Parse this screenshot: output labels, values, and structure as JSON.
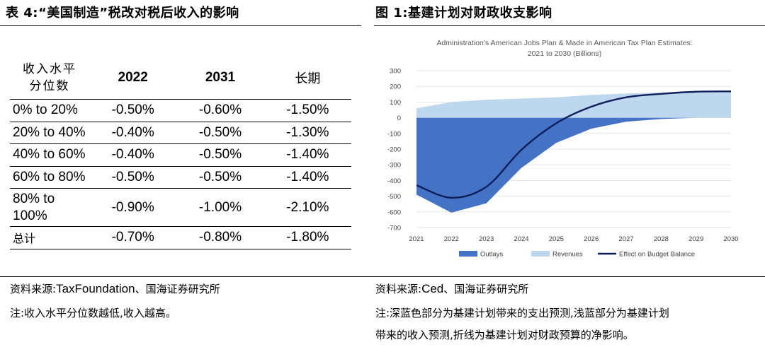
{
  "left": {
    "title": "表 4:“美国制造”税改对税后收入的影响",
    "table": {
      "header_first": [
        "收入水平",
        "分位数"
      ],
      "headers": [
        "2022",
        "2031",
        "长期"
      ],
      "rows": [
        {
          "label": "0% to 20%",
          "values": [
            "-0.50%",
            "-0.60%",
            "-1.50%"
          ]
        },
        {
          "label": "20% to 40%",
          "values": [
            "-0.40%",
            "-0.50%",
            "-1.30%"
          ]
        },
        {
          "label": "40% to 60%",
          "values": [
            "-0.40%",
            "-0.50%",
            "-1.40%"
          ]
        },
        {
          "label": "60% to 80%",
          "values": [
            "-0.50%",
            "-0.50%",
            "-1.40%"
          ]
        },
        {
          "label_lines": [
            "80% to",
            "100%"
          ],
          "values": [
            "-0.90%",
            "-1.00%",
            "-2.10%"
          ]
        },
        {
          "label": "总计",
          "values": [
            "-0.70%",
            "-0.80%",
            "-1.80%"
          ]
        }
      ]
    },
    "source_prefix": "资料来源:",
    "source_en": "TaxFoundation",
    "source_suffix": "、国海证券研究所",
    "note": "注:收入水平分位数越低,收入越高。"
  },
  "right": {
    "title": "图 1:基建计划对财政收支影响",
    "source_prefix": "资料来源:",
    "source_en": "Ced",
    "source_suffix": "、国海证券研究所",
    "note_lines": [
      "注:深蓝色部分为基建计划带来的支出预测,浅蓝部分为基建计划",
      "带来的收入预测,折线为基建计划对财政预算的净影响。"
    ]
  },
  "chart_data": {
    "type": "area",
    "title": "Administration's American Jobs Plan & Made in American Tax Plan Estimates:",
    "subtitle": "2021 to 2030 (Billions)",
    "x": [
      "2021",
      "2022",
      "2023",
      "2024",
      "2025",
      "2026",
      "2027",
      "2028",
      "2029",
      "2030"
    ],
    "yticks": [
      300,
      200,
      100,
      0,
      -100,
      -200,
      -300,
      -400,
      -500,
      -600,
      -700
    ],
    "ylim": [
      -700,
      300
    ],
    "series": [
      {
        "name": "Outlays",
        "kind": "area",
        "color": "#4472C4",
        "values": [
          -490,
          -605,
          -545,
          -320,
          -160,
          -70,
          -25,
          -8,
          0,
          0
        ]
      },
      {
        "name": "Revenues",
        "kind": "area",
        "color": "#BDD7EE",
        "values": [
          60,
          100,
          115,
          122,
          130,
          145,
          155,
          160,
          165,
          168
        ]
      },
      {
        "name": "Effect on Budget Balance",
        "kind": "line",
        "color": "#0E1F5B",
        "values": [
          -430,
          -510,
          -440,
          -205,
          -35,
          70,
          130,
          152,
          166,
          168
        ]
      }
    ],
    "grid": true,
    "legend": "bottom"
  }
}
